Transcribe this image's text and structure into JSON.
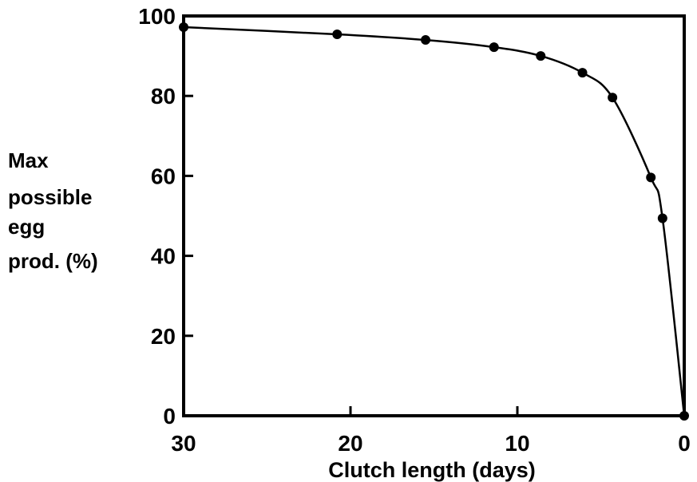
{
  "chart_data": {
    "type": "line",
    "title": "",
    "xlabel": "Clutch length (days)",
    "ylabel_lines": [
      "Max",
      "possible",
      "egg",
      "prod. (%)"
    ],
    "x_reversed": true,
    "xlim": [
      30,
      0
    ],
    "ylim": [
      0,
      100
    ],
    "x_ticks": [
      30,
      20,
      10,
      0
    ],
    "x_tick_labels": [
      "30",
      "20",
      "10",
      "0"
    ],
    "y_ticks": [
      0,
      20,
      40,
      60,
      80,
      100
    ],
    "y_tick_labels": [
      "0",
      "20",
      "40",
      "60",
      "80",
      "100"
    ],
    "grid": false,
    "series": [
      {
        "x": [
          30,
          20.8,
          15.5,
          11.4,
          8.6,
          6.1,
          4.3,
          2.0,
          1.3,
          0
        ],
        "y": [
          97.2,
          95.4,
          94.0,
          92.2,
          90.0,
          85.8,
          79.6,
          59.6,
          49.4,
          0
        ],
        "marker": "circle",
        "color": "#000000"
      }
    ]
  }
}
